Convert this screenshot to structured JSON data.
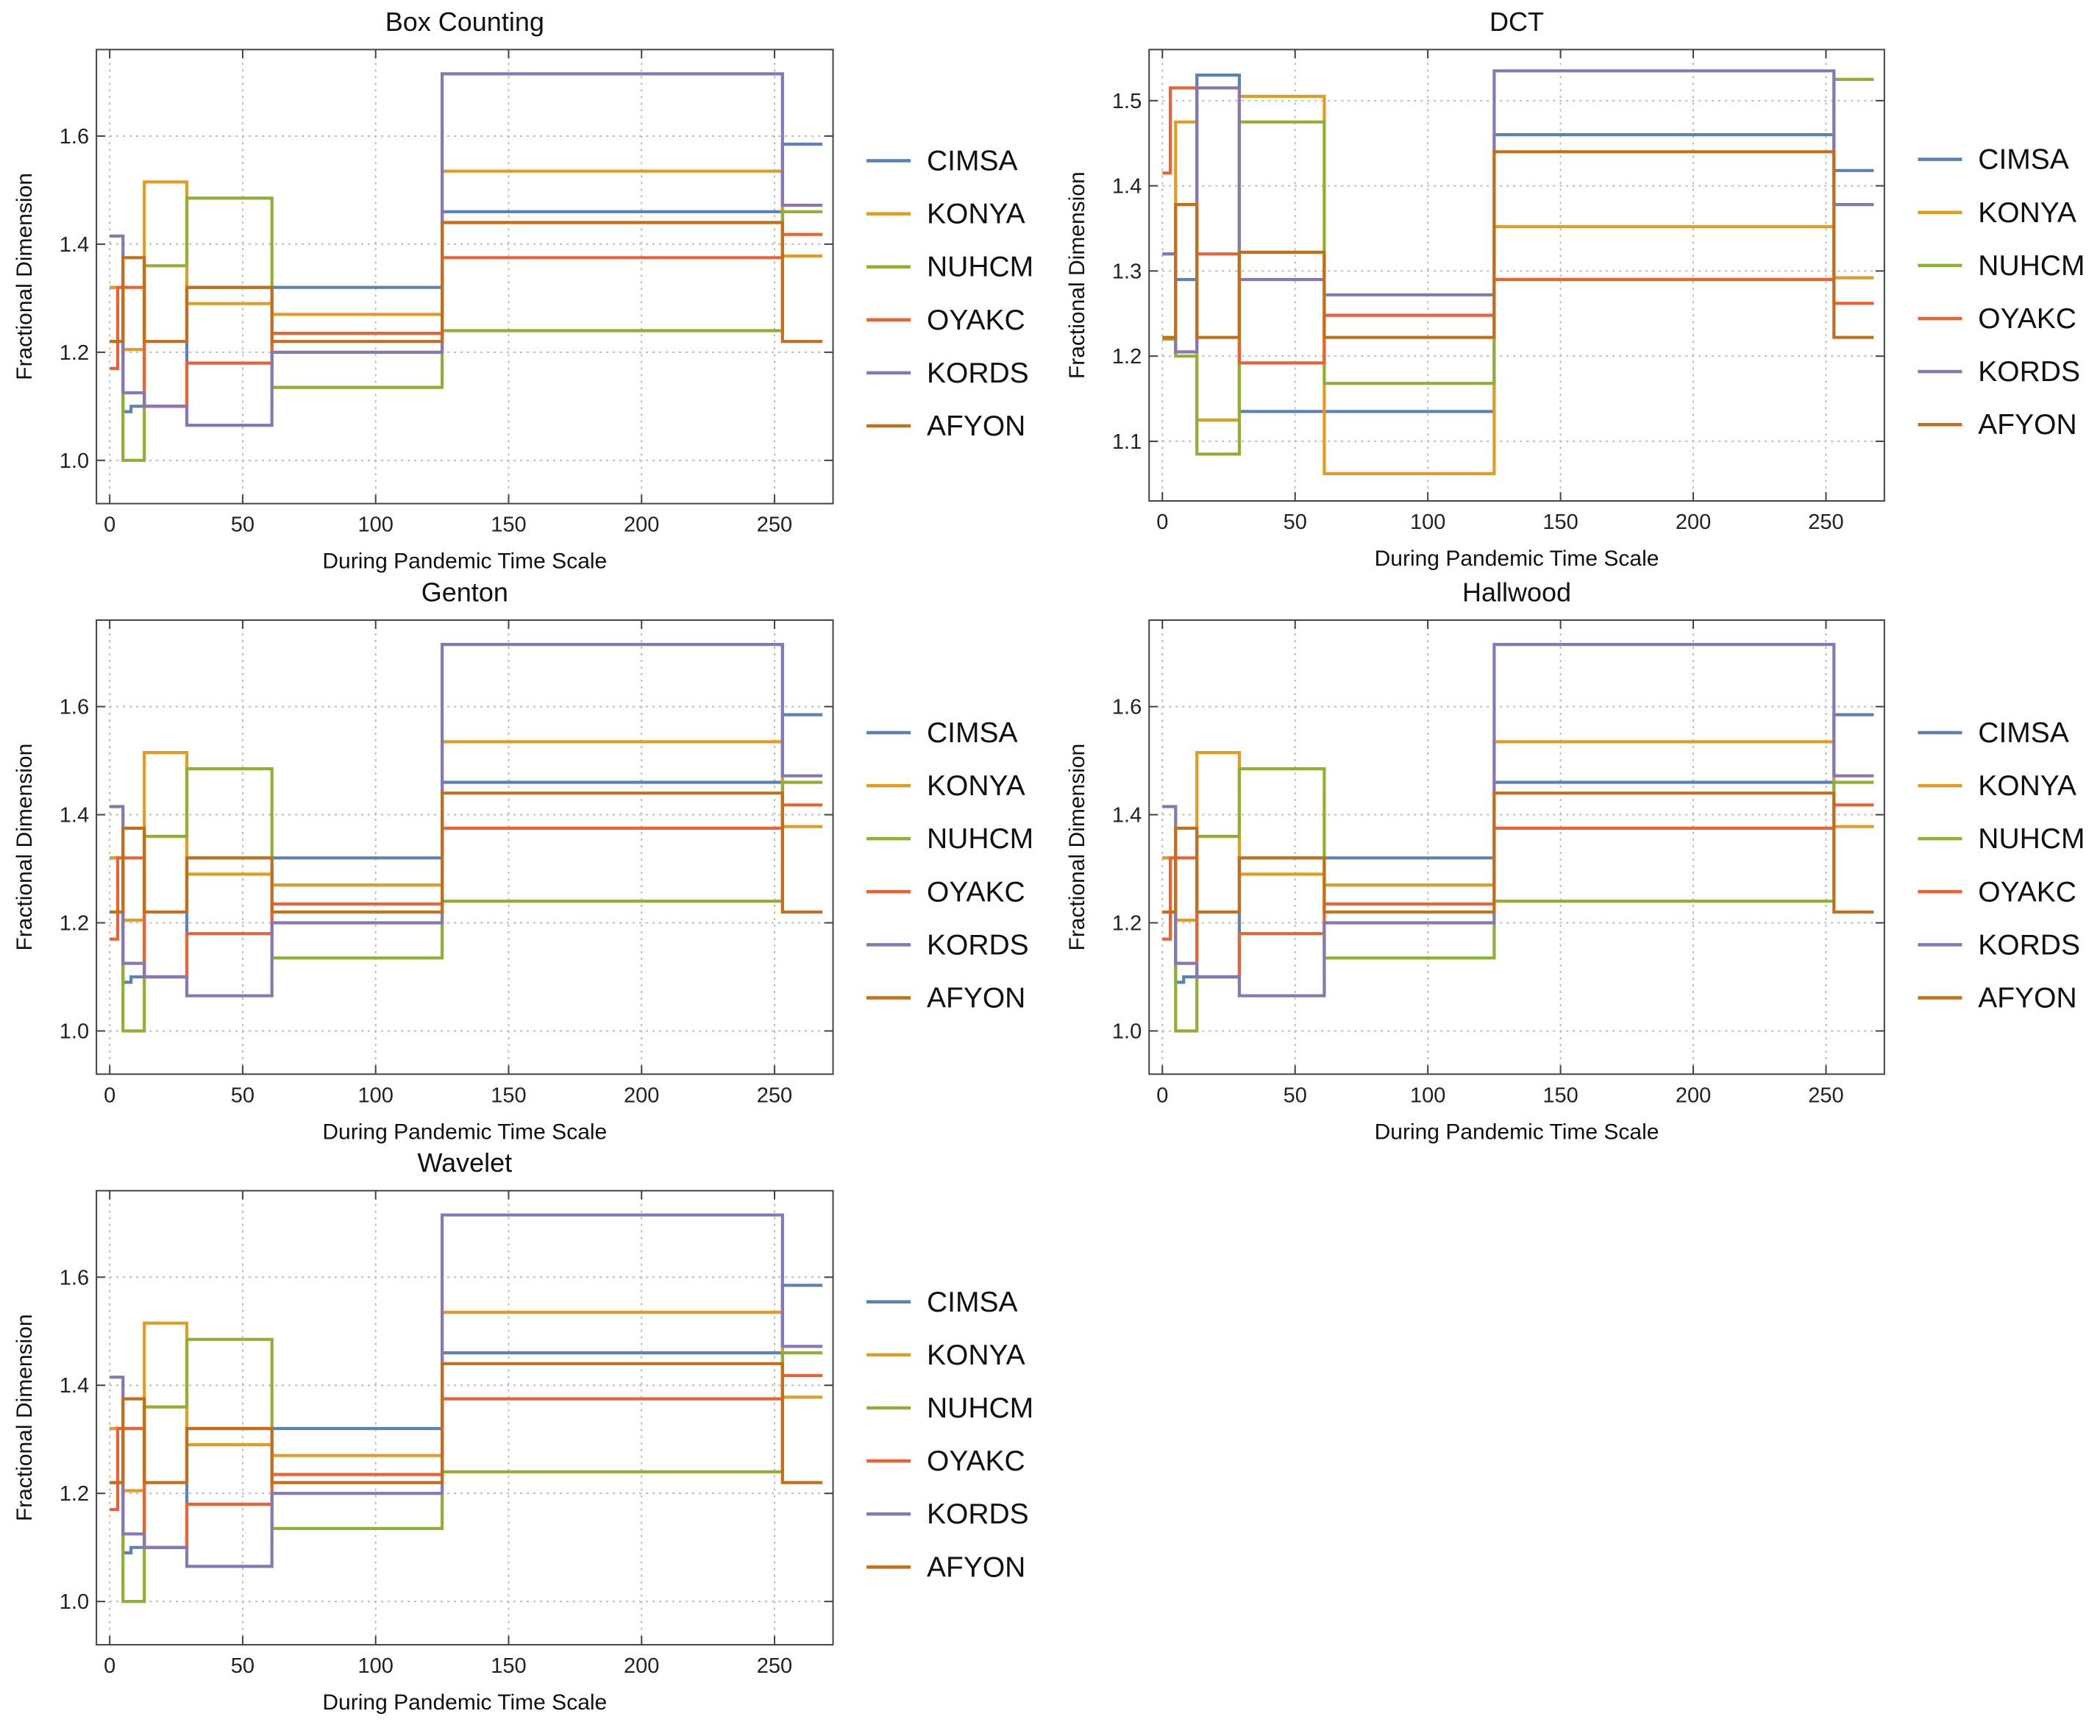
{
  "chart_data": {
    "type": "line",
    "step": true,
    "x_breaks": [
      0,
      3,
      5,
      8,
      13,
      29,
      61,
      125,
      253,
      268
    ],
    "series_names": [
      "CIMSA",
      "KONYA",
      "NUHCM",
      "OYAKC",
      "KORDS",
      "AFYON"
    ],
    "colors": {
      "CIMSA": "#5e81b5",
      "KONYA": "#e19c24",
      "NUHCM": "#8fb032",
      "OYAKC": "#eb6235",
      "KORDS": "#8778b3",
      "AFYON": "#c56e1a"
    },
    "panels": [
      {
        "title": "Box Counting",
        "xlabel": "During Pandemic Time Scale",
        "ylabel": "Fractional Dimension",
        "xlim": [
          -5,
          272
        ],
        "ylim": [
          0.92,
          1.76
        ],
        "xticks": [
          0,
          50,
          100,
          150,
          200,
          250
        ],
        "yticks": [
          1.0,
          1.2,
          1.4,
          1.6
        ],
        "series": [
          {
            "name": "CIMSA",
            "values": [
              1.32,
              1.32,
              1.09,
              1.1,
              1.1,
              1.32,
              1.32,
              1.46,
              1.585
            ]
          },
          {
            "name": "KONYA",
            "values": [
              1.32,
              1.32,
              1.205,
              1.205,
              1.515,
              1.29,
              1.27,
              1.535,
              1.378
            ]
          },
          {
            "name": "NUHCM",
            "values": [
              1.22,
              1.22,
              1.0,
              1.0,
              1.36,
              1.485,
              1.135,
              1.24,
              1.46
            ]
          },
          {
            "name": "OYAKC",
            "values": [
              1.17,
              1.32,
              1.32,
              1.32,
              1.1,
              1.18,
              1.235,
              1.375,
              1.418
            ]
          },
          {
            "name": "KORDS",
            "values": [
              1.415,
              1.415,
              1.125,
              1.125,
              1.1,
              1.065,
              1.2,
              1.715,
              1.472
            ]
          },
          {
            "name": "AFYON",
            "values": [
              1.22,
              1.22,
              1.375,
              1.375,
              1.22,
              1.32,
              1.22,
              1.44,
              1.22
            ]
          }
        ]
      },
      {
        "title": "DCT",
        "xlabel": "During Pandemic Time Scale",
        "ylabel": "Fractional Dimension",
        "xlim": [
          -5,
          272
        ],
        "ylim": [
          1.03,
          1.56
        ],
        "xticks": [
          0,
          50,
          100,
          150,
          200,
          250
        ],
        "yticks": [
          1.1,
          1.2,
          1.3,
          1.4,
          1.5
        ],
        "series": [
          {
            "name": "CIMSA",
            "values": [
              1.32,
              1.32,
              1.29,
              1.29,
              1.53,
              1.135,
              1.135,
              1.46,
              1.418
            ]
          },
          {
            "name": "KONYA",
            "values": [
              1.32,
              1.32,
              1.475,
              1.475,
              1.125,
              1.505,
              1.062,
              1.352,
              1.292
            ]
          },
          {
            "name": "NUHCM",
            "values": [
              1.22,
              1.22,
              1.2,
              1.2,
              1.085,
              1.475,
              1.168,
              1.29,
              1.525
            ]
          },
          {
            "name": "OYAKC",
            "values": [
              1.415,
              1.515,
              1.515,
              1.515,
              1.32,
              1.192,
              1.248,
              1.29,
              1.262
            ]
          },
          {
            "name": "KORDS",
            "values": [
              1.32,
              1.32,
              1.205,
              1.205,
              1.515,
              1.29,
              1.272,
              1.535,
              1.378
            ]
          },
          {
            "name": "AFYON",
            "values": [
              1.222,
              1.222,
              1.378,
              1.378,
              1.222,
              1.322,
              1.222,
              1.44,
              1.222
            ]
          }
        ]
      },
      {
        "title": "Genton",
        "xlabel": "During Pandemic Time Scale",
        "ylabel": "Fractional Dimension",
        "xlim": [
          -5,
          272
        ],
        "ylim": [
          0.92,
          1.76
        ],
        "xticks": [
          0,
          50,
          100,
          150,
          200,
          250
        ],
        "yticks": [
          1.0,
          1.2,
          1.4,
          1.6
        ],
        "series": [
          {
            "name": "CIMSA",
            "values": [
              1.32,
              1.32,
              1.09,
              1.1,
              1.1,
              1.32,
              1.32,
              1.46,
              1.585
            ]
          },
          {
            "name": "KONYA",
            "values": [
              1.32,
              1.32,
              1.205,
              1.205,
              1.515,
              1.29,
              1.27,
              1.535,
              1.378
            ]
          },
          {
            "name": "NUHCM",
            "values": [
              1.22,
              1.22,
              1.0,
              1.0,
              1.36,
              1.485,
              1.135,
              1.24,
              1.46
            ]
          },
          {
            "name": "OYAKC",
            "values": [
              1.17,
              1.32,
              1.32,
              1.32,
              1.1,
              1.18,
              1.235,
              1.375,
              1.418
            ]
          },
          {
            "name": "KORDS",
            "values": [
              1.415,
              1.415,
              1.125,
              1.125,
              1.1,
              1.065,
              1.2,
              1.715,
              1.472
            ]
          },
          {
            "name": "AFYON",
            "values": [
              1.22,
              1.22,
              1.375,
              1.375,
              1.22,
              1.32,
              1.22,
              1.44,
              1.22
            ]
          }
        ]
      },
      {
        "title": "Hallwood",
        "xlabel": "During Pandemic Time Scale",
        "ylabel": "Fractional Dimension",
        "xlim": [
          -5,
          272
        ],
        "ylim": [
          0.92,
          1.76
        ],
        "xticks": [
          0,
          50,
          100,
          150,
          200,
          250
        ],
        "yticks": [
          1.0,
          1.2,
          1.4,
          1.6
        ],
        "series": [
          {
            "name": "CIMSA",
            "values": [
              1.32,
              1.32,
              1.09,
              1.1,
              1.1,
              1.32,
              1.32,
              1.46,
              1.585
            ]
          },
          {
            "name": "KONYA",
            "values": [
              1.32,
              1.32,
              1.205,
              1.205,
              1.515,
              1.29,
              1.27,
              1.535,
              1.378
            ]
          },
          {
            "name": "NUHCM",
            "values": [
              1.22,
              1.22,
              1.0,
              1.0,
              1.36,
              1.485,
              1.135,
              1.24,
              1.46
            ]
          },
          {
            "name": "OYAKC",
            "values": [
              1.17,
              1.32,
              1.32,
              1.32,
              1.1,
              1.18,
              1.235,
              1.375,
              1.418
            ]
          },
          {
            "name": "KORDS",
            "values": [
              1.415,
              1.415,
              1.125,
              1.125,
              1.1,
              1.065,
              1.2,
              1.715,
              1.472
            ]
          },
          {
            "name": "AFYON",
            "values": [
              1.22,
              1.22,
              1.375,
              1.375,
              1.22,
              1.32,
              1.22,
              1.44,
              1.22
            ]
          }
        ]
      },
      {
        "title": "Wavelet",
        "xlabel": "During Pandemic Time Scale",
        "ylabel": "Fractional Dimension",
        "xlim": [
          -5,
          272
        ],
        "ylim": [
          0.92,
          1.76
        ],
        "xticks": [
          0,
          50,
          100,
          150,
          200,
          250
        ],
        "yticks": [
          1.0,
          1.2,
          1.4,
          1.6
        ],
        "series": [
          {
            "name": "CIMSA",
            "values": [
              1.32,
              1.32,
              1.09,
              1.1,
              1.1,
              1.32,
              1.32,
              1.46,
              1.585
            ]
          },
          {
            "name": "KONYA",
            "values": [
              1.32,
              1.32,
              1.205,
              1.205,
              1.515,
              1.29,
              1.27,
              1.535,
              1.378
            ]
          },
          {
            "name": "NUHCM",
            "values": [
              1.22,
              1.22,
              1.0,
              1.0,
              1.36,
              1.485,
              1.135,
              1.24,
              1.46
            ]
          },
          {
            "name": "OYAKC",
            "values": [
              1.17,
              1.32,
              1.32,
              1.32,
              1.1,
              1.18,
              1.235,
              1.375,
              1.418
            ]
          },
          {
            "name": "KORDS",
            "values": [
              1.415,
              1.415,
              1.125,
              1.125,
              1.1,
              1.065,
              1.2,
              1.715,
              1.472
            ]
          },
          {
            "name": "AFYON",
            "values": [
              1.22,
              1.22,
              1.375,
              1.375,
              1.22,
              1.32,
              1.22,
              1.44,
              1.22
            ]
          }
        ]
      }
    ]
  }
}
